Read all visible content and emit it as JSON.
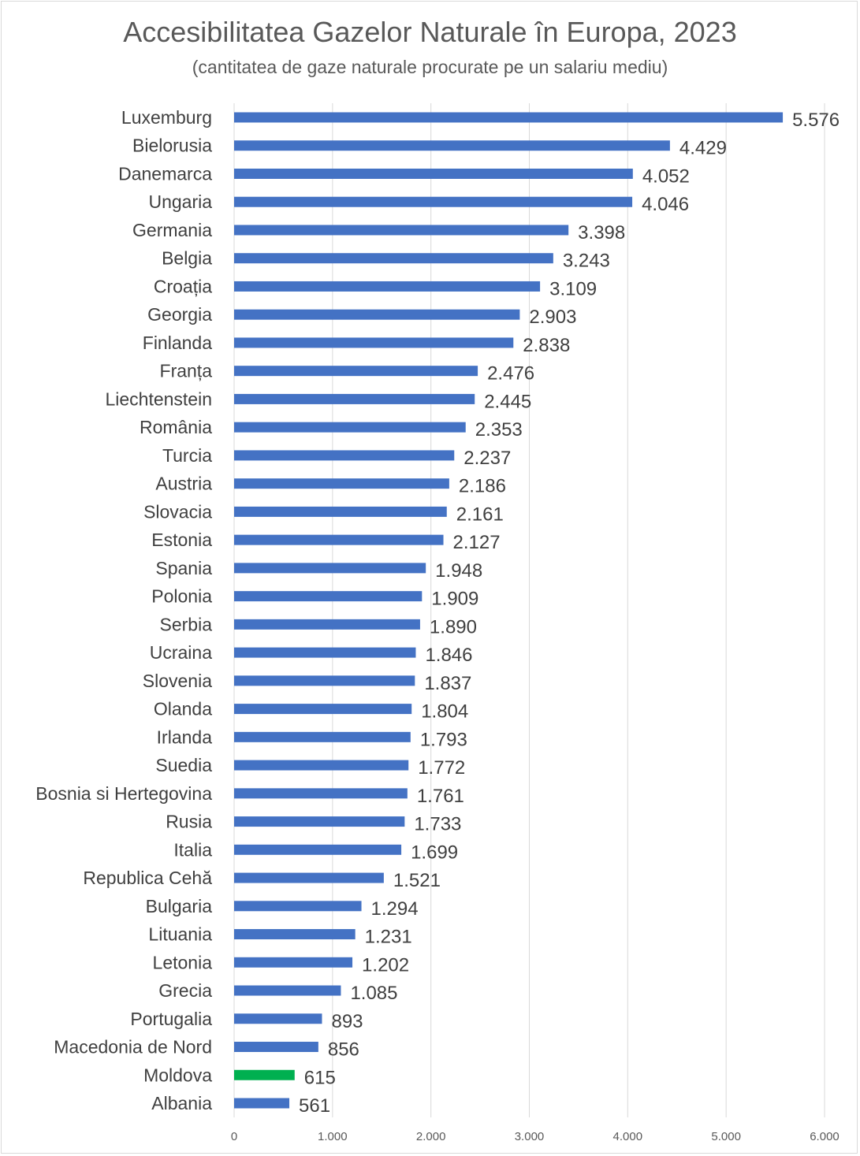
{
  "chart_data": {
    "type": "bar",
    "orientation": "horizontal",
    "title": "Accesibilitatea Gazelor Naturale în Europa, 2023",
    "subtitle": "(cantitatea de gaze naturale procurate pe un salariu mediu)",
    "xlabel": "",
    "ylabel": "",
    "xlim": [
      0,
      6000
    ],
    "x_ticks": [
      0,
      1000,
      2000,
      3000,
      4000,
      5000,
      6000
    ],
    "x_tick_labels": [
      "0",
      "1.000",
      "2.000",
      "3.000",
      "4.000",
      "5.000",
      "6.000"
    ],
    "grid": true,
    "colors": {
      "default": "#4472C4",
      "highlight": "#00B050"
    },
    "highlight": "Moldova",
    "categories": [
      "Luxemburg",
      "Bielorusia",
      "Danemarca",
      "Ungaria",
      "Germania",
      "Belgia",
      "Croația",
      "Georgia",
      "Finlanda",
      "Franța",
      "Liechtenstein",
      "România",
      "Turcia",
      "Austria",
      "Slovacia",
      "Estonia",
      "Spania",
      "Polonia",
      "Serbia",
      "Ucraina",
      "Slovenia",
      "Olanda",
      "Irlanda",
      "Suedia",
      "Bosnia si Hertegovina",
      "Rusia",
      "Italia",
      "Republica Cehă",
      "Bulgaria",
      "Lituania",
      "Letonia",
      "Grecia",
      "Portugalia",
      "Macedonia de Nord",
      "Moldova",
      "Albania"
    ],
    "values": [
      5576,
      4429,
      4052,
      4046,
      3398,
      3243,
      3109,
      2903,
      2838,
      2476,
      2445,
      2353,
      2237,
      2186,
      2161,
      2127,
      1948,
      1909,
      1890,
      1846,
      1837,
      1804,
      1793,
      1772,
      1761,
      1733,
      1699,
      1521,
      1294,
      1231,
      1202,
      1085,
      893,
      856,
      615,
      561
    ],
    "value_labels": [
      "5.576",
      "4.429",
      "4.052",
      "4.046",
      "3.398",
      "3.243",
      "3.109",
      "2.903",
      "2.838",
      "2.476",
      "2.445",
      "2.353",
      "2.237",
      "2.186",
      "2.161",
      "2.127",
      "1.948",
      "1.909",
      "1.890",
      "1.846",
      "1.837",
      "1.804",
      "1.793",
      "1.772",
      "1.761",
      "1.733",
      "1.699",
      "1.521",
      "1.294",
      "1.231",
      "1.202",
      "1.085",
      "893",
      "856",
      "615",
      "561"
    ]
  }
}
